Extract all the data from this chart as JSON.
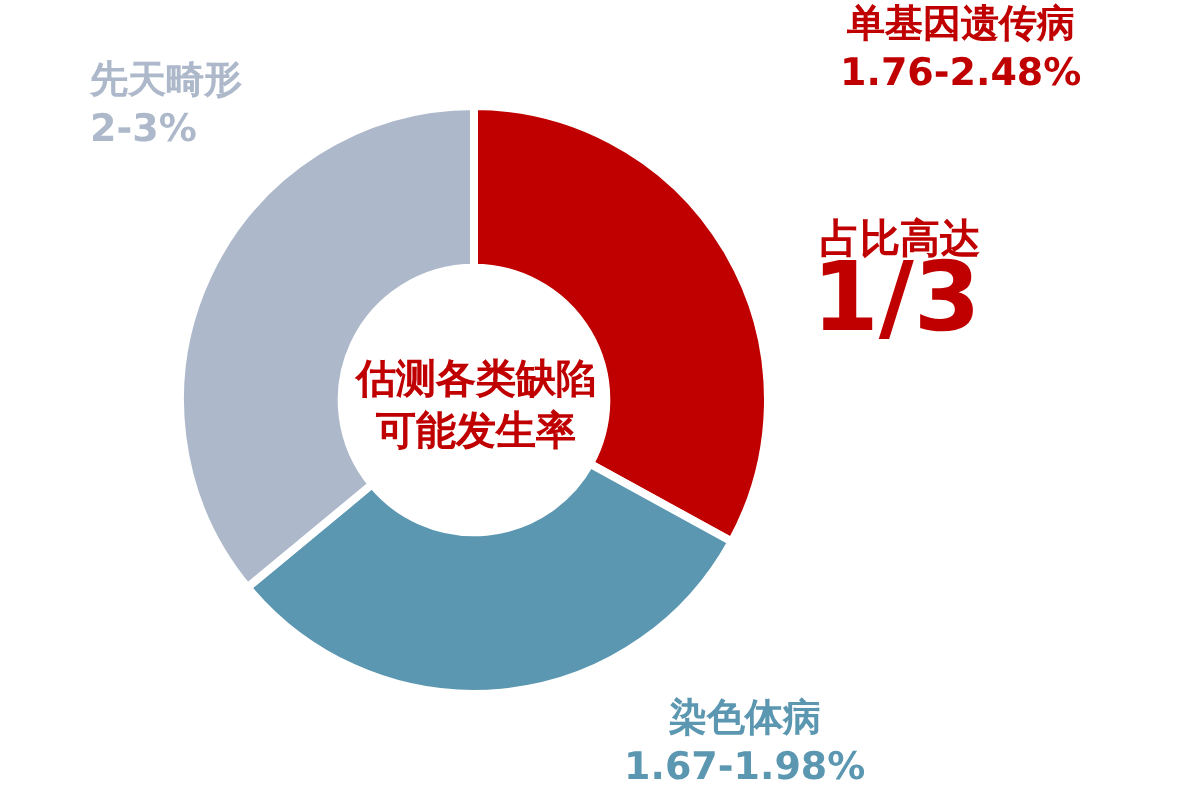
{
  "chart_data": {
    "type": "donut",
    "title": "估测各类缺陷可能发生率",
    "categories": [
      "单基因遗传病",
      "染色体病",
      "先天畸形"
    ],
    "values": [
      33,
      31,
      36
    ],
    "colors": [
      "#c00000",
      "#5b97b1",
      "#adb9ca"
    ],
    "annotations": [
      "1.76-2.48%",
      "1.67-1.98%",
      "2-3%",
      "占比高达",
      "1/3"
    ],
    "legend": false
  }
}
